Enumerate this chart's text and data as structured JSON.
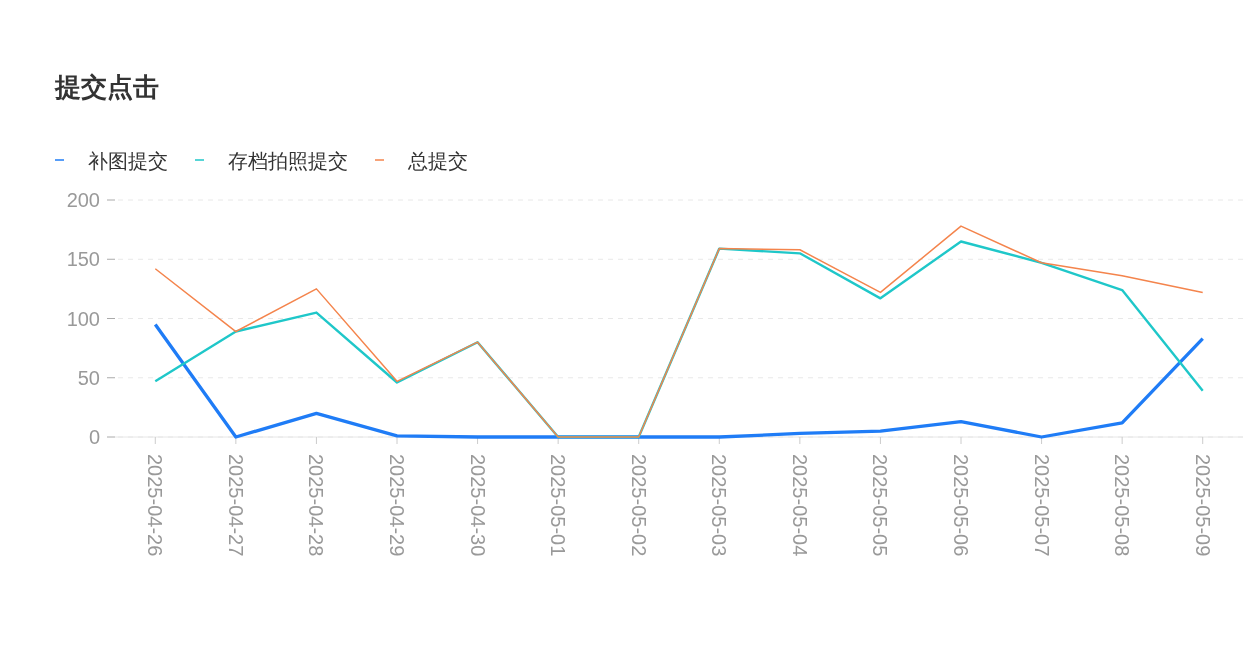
{
  "chart_data": {
    "type": "line",
    "title": "提交点击",
    "categories": [
      "2025-04-26",
      "2025-04-27",
      "2025-04-28",
      "2025-04-29",
      "2025-04-30",
      "2025-05-01",
      "2025-05-02",
      "2025-05-03",
      "2025-05-04",
      "2025-05-05",
      "2025-05-06",
      "2025-05-07",
      "2025-05-08",
      "2025-05-09"
    ],
    "series": [
      {
        "name": "补图提交",
        "color": "#1f7cf6",
        "values": [
          95,
          0,
          20,
          1,
          0,
          0,
          0,
          0,
          3,
          5,
          13,
          0,
          12,
          83
        ]
      },
      {
        "name": "存档拍照提交",
        "color": "#1fc7c9",
        "values": [
          47,
          89,
          105,
          46,
          80,
          0,
          0,
          159,
          155,
          117,
          165,
          147,
          124,
          39
        ]
      },
      {
        "name": "总提交",
        "color": "#f4844c",
        "values": [
          142,
          89,
          125,
          47,
          80,
          0,
          0,
          159,
          158,
          122,
          178,
          147,
          136,
          122
        ]
      }
    ],
    "ylim": [
      0,
      200
    ],
    "yticks": [
      0,
      50,
      100,
      150,
      200
    ],
    "grid": "y",
    "legend": "top left",
    "marker": "none",
    "line_style": "solid"
  }
}
